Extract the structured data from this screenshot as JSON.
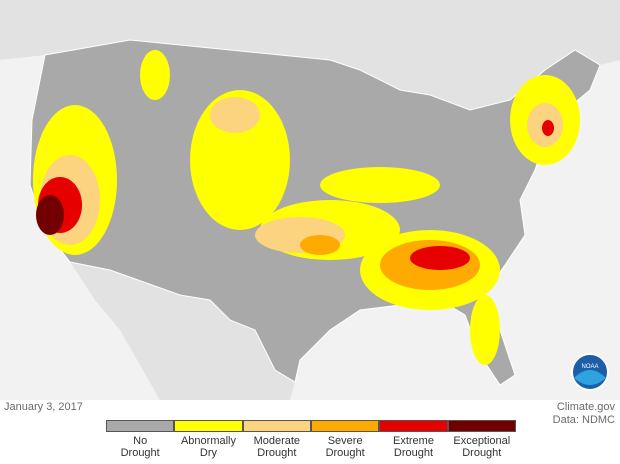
{
  "map": {
    "date": "January 3, 2017",
    "credits": [
      "Climate.gov",
      "Data: NDMC"
    ],
    "logo": "NOAA",
    "legend": [
      {
        "label": "No Drought",
        "color": "#a9a9a9"
      },
      {
        "label": "Abnormally Dry",
        "color": "#ffff00"
      },
      {
        "label": "Moderate Drought",
        "color": "#fcd37f"
      },
      {
        "label": "Severe Drought",
        "color": "#ffaa00"
      },
      {
        "label": "Extreme Drought",
        "color": "#e60000"
      },
      {
        "label": "Exceptional Drought",
        "color": "#730000"
      }
    ]
  }
}
